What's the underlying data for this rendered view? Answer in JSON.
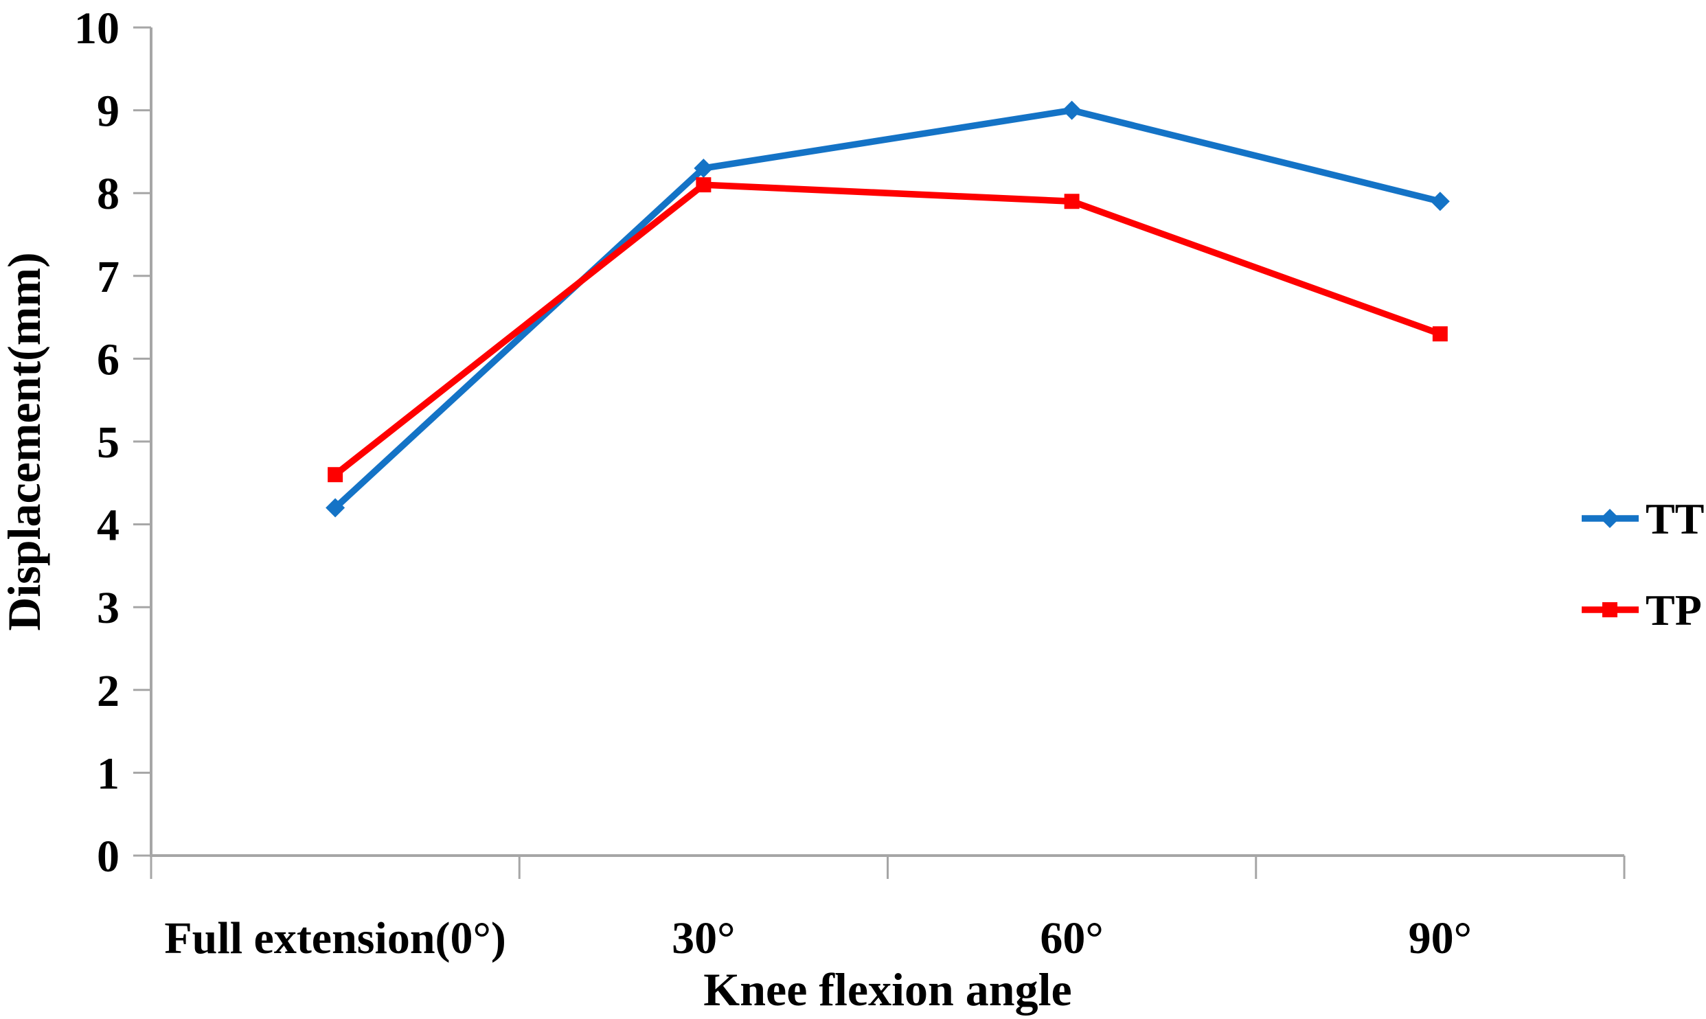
{
  "chart_data": {
    "type": "line",
    "title": "",
    "categories": [
      "Full extension(0°)",
      "30°",
      "60°",
      "90°"
    ],
    "series": [
      {
        "name": "TT",
        "values": [
          4.2,
          8.3,
          9.0,
          7.9
        ],
        "color": "#1473C6",
        "marker": "diamond"
      },
      {
        "name": "TP",
        "values": [
          4.6,
          8.1,
          7.9,
          6.3
        ],
        "color": "#FE0000",
        "marker": "square"
      }
    ],
    "xlabel": "Knee flexion angle",
    "ylabel": "Displacement(mm)",
    "ylim": [
      0,
      10
    ],
    "yticks": [
      "0",
      "1",
      "2",
      "3",
      "4",
      "5",
      "6",
      "7",
      "8",
      "9",
      "10"
    ],
    "grid": false,
    "legend_position": "right",
    "legend": [
      "TT",
      "TP"
    ]
  },
  "colors": {
    "axis": "#A6A6A6",
    "text": "#000000",
    "background": "#FFFFFF",
    "series_tt": "#1473C6",
    "series_tp": "#FE0000"
  }
}
